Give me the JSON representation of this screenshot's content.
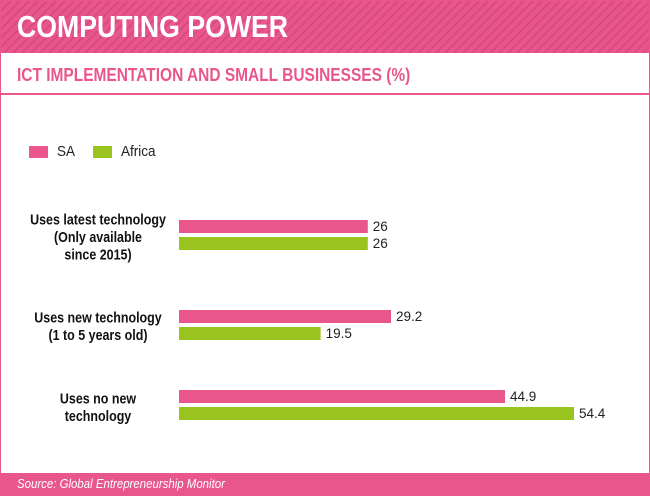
{
  "header": {
    "title": "COMPUTING POWER"
  },
  "subtitle": "ICT IMPLEMENTATION AND SMALL BUSINESSES (%)",
  "legend": [
    {
      "label": "SA",
      "color": "#e8568c"
    },
    {
      "label": "Africa",
      "color": "#99c31f"
    }
  ],
  "source": "Source: Global Entrepreneurship Monitor",
  "chart_data": {
    "type": "bar",
    "orientation": "horizontal",
    "categories": [
      [
        "Uses latest technology",
        "(Only available",
        "since 2015)"
      ],
      [
        "Uses new technology",
        "(1 to 5 years old)"
      ],
      [
        "Uses no new",
        "technology"
      ]
    ],
    "series": [
      {
        "name": "SA",
        "color": "#e8568c",
        "values": [
          26,
          29.2,
          44.9
        ]
      },
      {
        "name": "Africa",
        "color": "#99c31f",
        "values": [
          26,
          19.5,
          54.4
        ]
      }
    ],
    "xlim": [
      0,
      54.4
    ],
    "grid": false,
    "legend_position": "top-left"
  }
}
